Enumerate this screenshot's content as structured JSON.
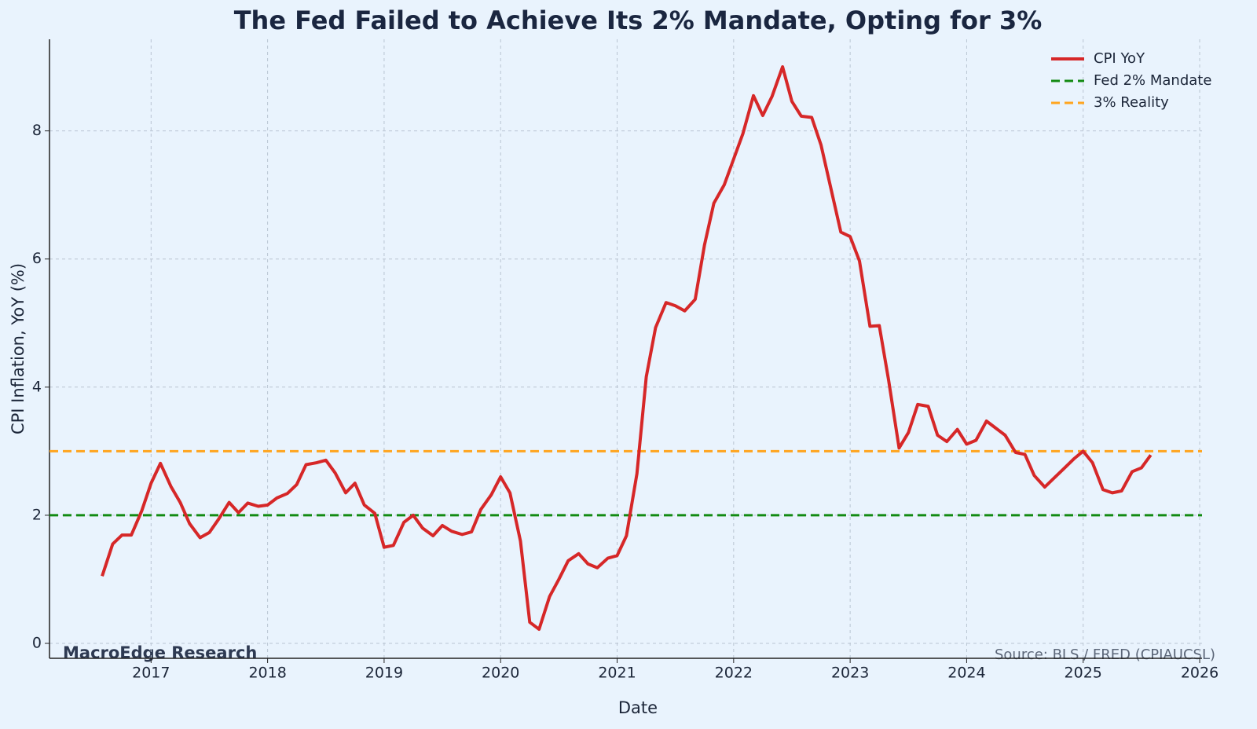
{
  "chart_data": {
    "type": "line",
    "title": "The Fed Failed to Achieve Its 2% Mandate, Opting for 3%",
    "x_label": "Date",
    "y_label": "CPI Inflation, YoY (%)",
    "annotations": [
      "MacroEdge Research",
      "Source: BLS / FRED (CPIAUCSL)"
    ],
    "x": [
      2016.58,
      2016.67,
      2016.75,
      2016.83,
      2016.92,
      2017.0,
      2017.08,
      2017.17,
      2017.25,
      2017.33,
      2017.42,
      2017.5,
      2017.58,
      2017.67,
      2017.75,
      2017.83,
      2017.92,
      2018.0,
      2018.08,
      2018.17,
      2018.25,
      2018.33,
      2018.42,
      2018.5,
      2018.58,
      2018.67,
      2018.75,
      2018.83,
      2018.92,
      2019.0,
      2019.08,
      2019.17,
      2019.25,
      2019.33,
      2019.42,
      2019.5,
      2019.58,
      2019.67,
      2019.75,
      2019.83,
      2019.92,
      2020.0,
      2020.08,
      2020.17,
      2020.25,
      2020.33,
      2020.42,
      2020.5,
      2020.58,
      2020.67,
      2020.75,
      2020.83,
      2020.92,
      2021.0,
      2021.08,
      2021.17,
      2021.25,
      2021.33,
      2021.42,
      2021.5,
      2021.58,
      2021.67,
      2021.75,
      2021.83,
      2021.92,
      2022.0,
      2022.08,
      2022.17,
      2022.25,
      2022.33,
      2022.42,
      2022.5,
      2022.58,
      2022.67,
      2022.75,
      2022.83,
      2022.92,
      2023.0,
      2023.08,
      2023.17,
      2023.25,
      2023.33,
      2023.42,
      2023.5,
      2023.58,
      2023.67,
      2023.75,
      2023.83,
      2023.92,
      2024.0,
      2024.08,
      2024.17,
      2024.25,
      2024.33,
      2024.42,
      2024.5,
      2024.58,
      2024.67,
      2024.75,
      2024.83,
      2024.92,
      2025.0,
      2025.08,
      2025.17,
      2025.25,
      2025.33,
      2025.42,
      2025.5,
      2025.58
    ],
    "series": [
      {
        "name": "CPI YoY",
        "color": "#d62728",
        "values": [
          1.05,
          1.55,
          1.69,
          1.69,
          2.07,
          2.5,
          2.81,
          2.45,
          2.2,
          1.87,
          1.65,
          1.73,
          1.94,
          2.2,
          2.04,
          2.19,
          2.14,
          2.16,
          2.27,
          2.34,
          2.48,
          2.79,
          2.82,
          2.86,
          2.66,
          2.35,
          2.5,
          2.16,
          2.03,
          1.5,
          1.53,
          1.89,
          2.0,
          1.8,
          1.68,
          1.84,
          1.75,
          1.7,
          1.74,
          2.09,
          2.32,
          2.6,
          2.35,
          1.6,
          0.33,
          0.22,
          0.73,
          1.0,
          1.29,
          1.4,
          1.24,
          1.18,
          1.33,
          1.37,
          1.68,
          2.65,
          4.16,
          4.93,
          5.32,
          5.27,
          5.19,
          5.37,
          6.22,
          6.87,
          7.16,
          7.56,
          7.96,
          8.55,
          8.24,
          8.54,
          9.0,
          8.46,
          8.23,
          8.21,
          7.78,
          7.14,
          6.42,
          6.35,
          5.97,
          4.95,
          4.96,
          4.11,
          3.05,
          3.29,
          3.73,
          3.7,
          3.25,
          3.15,
          3.34,
          3.11,
          3.17,
          3.47,
          3.36,
          3.25,
          2.98,
          2.95,
          2.62,
          2.44,
          2.58,
          2.72,
          2.88,
          3.0,
          2.82,
          2.4,
          2.35,
          2.38,
          2.68,
          2.74,
          2.94
        ]
      }
    ],
    "reference_lines": [
      {
        "name": "Fed 2% Mandate",
        "value": 2,
        "color": "#128a12"
      },
      {
        "name": "3% Reality",
        "value": 3,
        "color": "#ffa51f"
      }
    ],
    "xlim": [
      2016.128,
      2026.02
    ],
    "ylim": [
      -0.233,
      9.43
    ],
    "xticks": [
      2017,
      2018,
      2019,
      2020,
      2021,
      2022,
      2023,
      2024,
      2025,
      2026
    ],
    "yticks": [
      0,
      2,
      4,
      6,
      8
    ],
    "grid": true,
    "legend": "upper right"
  }
}
